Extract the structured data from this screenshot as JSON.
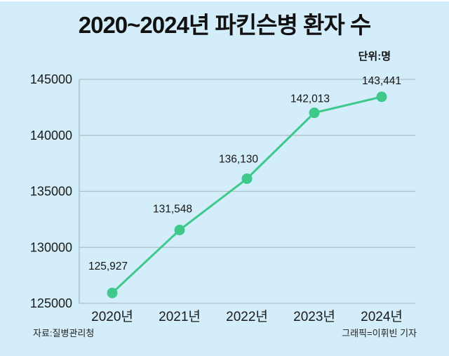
{
  "title": "2020~2024년 파킨슨병 환자 수",
  "unit_label": "단위:명",
  "source": "자료:질병관리청",
  "credit": "그래픽=이휘빈 기자",
  "colors": {
    "background": "#d3edfa",
    "line": "#3ec98a",
    "marker": "#3ec98a",
    "grid": "#aebfc7",
    "axis": "#aebfc7",
    "text": "#1a1a1a"
  },
  "chart_data": {
    "type": "line",
    "title": "2020~2024년 파킨슨병 환자 수",
    "categories": [
      "2020년",
      "2021년",
      "2022년",
      "2023년",
      "2024년"
    ],
    "values": [
      125927,
      131548,
      136130,
      142013,
      143441
    ],
    "data_labels": [
      "125,927",
      "131,548",
      "136,130",
      "142,013",
      "143,441"
    ],
    "xlabel": "",
    "ylabel": "단위:명",
    "ylim": [
      125000,
      145000
    ],
    "y_ticks": [
      125000,
      130000,
      135000,
      140000,
      145000
    ],
    "y_tick_labels": [
      "125000",
      "130000",
      "135000",
      "140000",
      "145000"
    ],
    "grid": true,
    "legend": false,
    "marker": "circle"
  }
}
